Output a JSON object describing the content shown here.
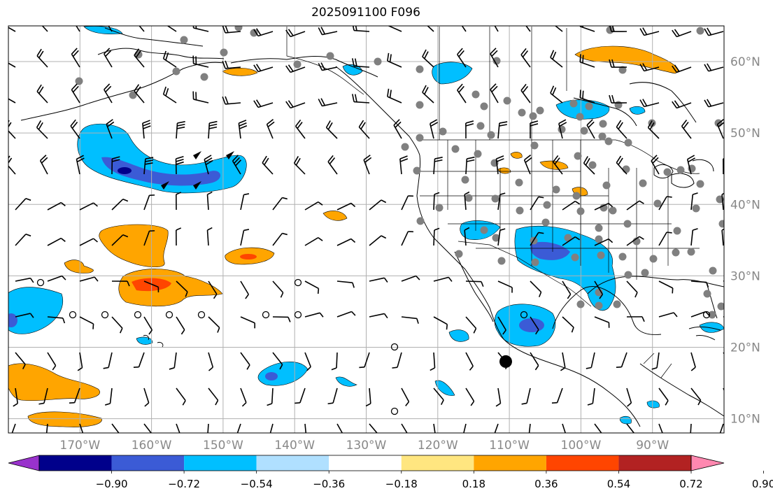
{
  "title": "2025091100 F096",
  "map": {
    "lon_range": [
      -180,
      -80
    ],
    "lat_range": [
      8,
      65
    ],
    "lat_ticks": [
      {
        "value": 60,
        "label": "60°N"
      },
      {
        "value": 50,
        "label": "50°N"
      },
      {
        "value": 40,
        "label": "40°N"
      },
      {
        "value": 30,
        "label": "30°N"
      },
      {
        "value": 20,
        "label": "20°N"
      },
      {
        "value": 10,
        "label": "10°N"
      }
    ],
    "lon_ticks": [
      {
        "value": -170,
        "label": "170°W"
      },
      {
        "value": -160,
        "label": "160°W"
      },
      {
        "value": -150,
        "label": "150°W"
      },
      {
        "value": -140,
        "label": "140°W"
      },
      {
        "value": -130,
        "label": "130°W"
      },
      {
        "value": -120,
        "label": "120°W"
      },
      {
        "value": -110,
        "label": "110°W"
      },
      {
        "value": -100,
        "label": "100°W"
      },
      {
        "value": -90,
        "label": "90°W"
      }
    ],
    "gridlines": true,
    "marked_point": {
      "lon": -110.5,
      "lat": 18
    }
  },
  "colorbar": {
    "colors": [
      "#9932cc",
      "#00008b",
      "#3b5bd6",
      "#00bfff",
      "#b0e0ff",
      "#ffffff",
      "#ffe680",
      "#ffa500",
      "#ff4500",
      "#b22222",
      "#ff88b0"
    ],
    "ticks": [
      "−0.90",
      "−0.72",
      "−0.54",
      "−0.36",
      "−0.18",
      "0.18",
      "0.36",
      "0.54",
      "0.72",
      "0.90"
    ]
  },
  "colors": {
    "gridline": "#b0b0b0",
    "coast": "#000000",
    "station": "#808080",
    "tick_text": "#888888"
  },
  "icons": [
    "wind-barb-icon",
    "station-dot-icon",
    "calm-circle-icon",
    "marked-point-icon"
  ]
}
